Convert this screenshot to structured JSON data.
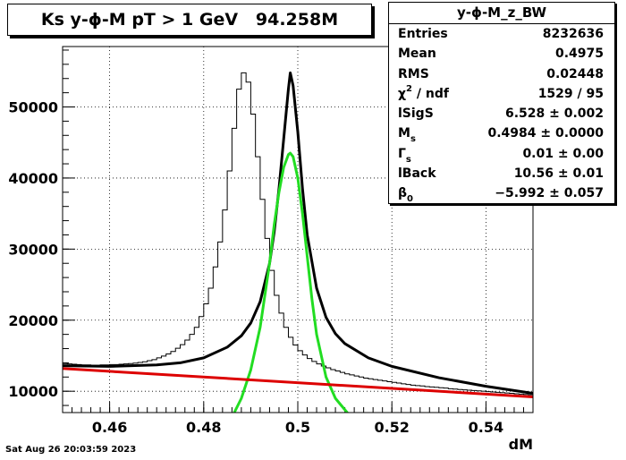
{
  "title": "Ks y-ϕ-M pT > 1 GeV   94.258M",
  "stats": {
    "name": "y-ϕ-M_z_BW",
    "rows": [
      {
        "label": "Entries",
        "value": "8232636"
      },
      {
        "label": "Mean",
        "value": "0.4975"
      },
      {
        "label": "RMS",
        "value": "0.02448"
      },
      {
        "label": "χ",
        "label_sup": "2",
        "label_rest": " / ndf",
        "value": "1529 / 95"
      },
      {
        "label": "lSigS",
        "value": "6.528 ± 0.002"
      },
      {
        "label": "M",
        "label_sub": "s",
        "value": "0.4984 ± 0.0000"
      },
      {
        "label": "Γ",
        "label_sub": "s",
        "value": "0.01 ± 0.00"
      },
      {
        "label": "lBack",
        "value": "10.56 ± 0.01"
      },
      {
        "label": "β",
        "label_sub": "0",
        "value": "−5.992 ± 0.057"
      }
    ]
  },
  "timestamp": "Sat Aug 26 20:03:59 2023",
  "chart_data": {
    "type": "line",
    "xlabel": "dM",
    "ylabel": "",
    "xlim": [
      0.45,
      0.55
    ],
    "ylim": [
      7000,
      58500
    ],
    "xticks": [
      0.46,
      0.48,
      0.5,
      0.52,
      0.54
    ],
    "xtick_labels": [
      "0.46",
      "0.48",
      "0.5",
      "0.52",
      "0.54"
    ],
    "yticks": [
      10000,
      20000,
      30000,
      40000,
      50000
    ],
    "ytick_labels": [
      "10000",
      "20000",
      "30000",
      "40000",
      "50000"
    ],
    "grid": true,
    "series": [
      {
        "kind": "histogram",
        "color": "#000000",
        "bin_edges_range": [
          0.45,
          0.55
        ],
        "n_bins": 100,
        "values": [
          13900,
          13850,
          13800,
          13750,
          13700,
          13700,
          13650,
          13650,
          13700,
          13700,
          13750,
          13750,
          13800,
          13850,
          13900,
          13950,
          14050,
          14150,
          14300,
          14450,
          14700,
          14950,
          15250,
          15600,
          16050,
          16550,
          17200,
          18000,
          19000,
          20500,
          22300,
          24500,
          27500,
          31000,
          35500,
          41000,
          47000,
          52500,
          54800,
          53500,
          49000,
          43000,
          37000,
          31500,
          27000,
          23500,
          21000,
          19000,
          17600,
          16500,
          15700,
          15100,
          14600,
          14200,
          13850,
          13550,
          13300,
          13050,
          12850,
          12650,
          12450,
          12300,
          12150,
          12000,
          11850,
          11750,
          11650,
          11550,
          11450,
          11350,
          11250,
          11150,
          11050,
          10950,
          10850,
          10800,
          10750,
          10650,
          10600,
          10550,
          10500,
          10450,
          10350,
          10300,
          10250,
          10200,
          10150,
          10100,
          10050,
          10000,
          9950,
          9900,
          9850,
          9800,
          9750,
          9700,
          9650,
          9600,
          9550,
          9500
        ]
      },
      {
        "kind": "fit-total",
        "color": "#000000",
        "x": [
          0.45,
          0.46,
          0.47,
          0.475,
          0.48,
          0.485,
          0.488,
          0.49,
          0.492,
          0.494,
          0.495,
          0.496,
          0.497,
          0.498,
          0.4984,
          0.499,
          0.5,
          0.501,
          0.502,
          0.504,
          0.506,
          0.508,
          0.51,
          0.515,
          0.52,
          0.53,
          0.54,
          0.55
        ],
        "y": [
          13600,
          13500,
          13700,
          14000,
          14700,
          16200,
          17800,
          19600,
          22600,
          28000,
          32500,
          38500,
          45500,
          52500,
          54800,
          53000,
          46500,
          38500,
          32000,
          24500,
          20400,
          18100,
          16700,
          14700,
          13500,
          11900,
          10700,
          9700
        ]
      },
      {
        "kind": "signal",
        "color": "#22dd22",
        "x": [
          0.4865,
          0.488,
          0.49,
          0.492,
          0.494,
          0.495,
          0.496,
          0.497,
          0.498,
          0.4984,
          0.499,
          0.5,
          0.501,
          0.502,
          0.503,
          0.504,
          0.506,
          0.508,
          0.5105
        ],
        "y": [
          7000,
          9000,
          13000,
          19000,
          28000,
          33500,
          38000,
          41500,
          43300,
          43500,
          43000,
          40000,
          35000,
          29000,
          23000,
          18000,
          12000,
          9000,
          7000
        ]
      },
      {
        "kind": "background",
        "color": "#dd0000",
        "x": [
          0.45,
          0.55
        ],
        "y": [
          13200,
          9200
        ]
      }
    ]
  }
}
